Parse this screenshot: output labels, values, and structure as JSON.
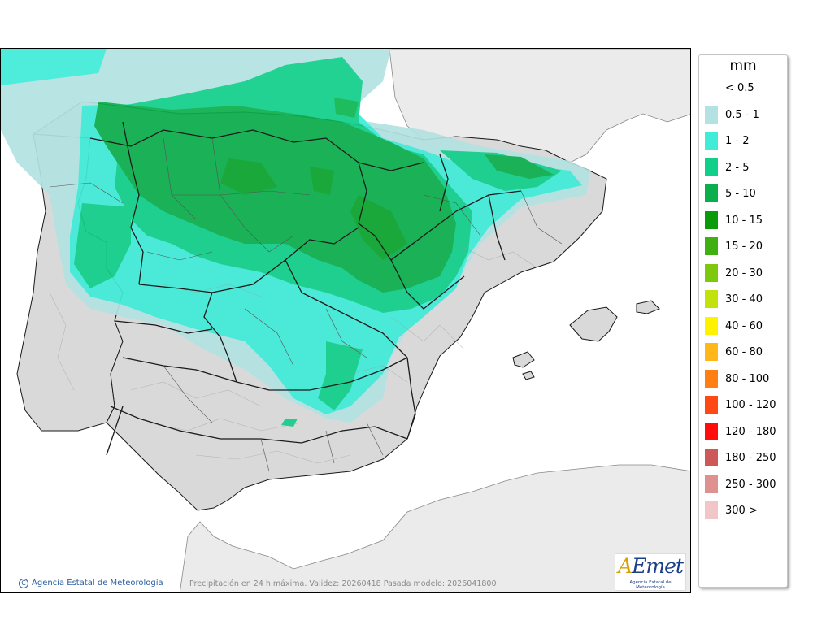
{
  "map": {
    "caption": "Precipitación en 24 h máxima. Validez: 20260418 Pasada modelo: 2026041800",
    "copyright": "Agencia Estatal de Meteorología",
    "copyright_symbol": "C",
    "logo": {
      "mark_a": "A",
      "mark_rest": "Emet",
      "subtitle": "Agencia Estatal de Meteorología"
    },
    "colors": {
      "sea": "#ffffff",
      "land": "#d9d9d9",
      "land_other": "#ebebeb",
      "border": "#1a1a1a"
    }
  },
  "legend": {
    "unit": "mm",
    "items": [
      {
        "label": "< 0.5",
        "color": ""
      },
      {
        "label": "0.5 - 1",
        "color": "#b4e2e2"
      },
      {
        "label": "1 - 2",
        "color": "#40ecd8"
      },
      {
        "label": "2 - 5",
        "color": "#10cf8a"
      },
      {
        "label": "5 - 10",
        "color": "#0bae4c"
      },
      {
        "label": "10 - 15",
        "color": "#0a9a0a"
      },
      {
        "label": "15 - 20",
        "color": "#3fb010"
      },
      {
        "label": "20 - 30",
        "color": "#7ec80e"
      },
      {
        "label": "30 - 40",
        "color": "#c1e20b"
      },
      {
        "label": "40 - 60",
        "color": "#fff200"
      },
      {
        "label": "60 - 80",
        "color": "#ffb71a"
      },
      {
        "label": "80 - 100",
        "color": "#ff7f12"
      },
      {
        "label": "100 - 120",
        "color": "#ff4813"
      },
      {
        "label": "120 - 180",
        "color": "#ff0c0c"
      },
      {
        "label": "180 - 250",
        "color": "#cc5858"
      },
      {
        "label": "250 - 300",
        "color": "#df9191"
      },
      {
        "label": "300 >",
        "color": "#f0c6c6"
      }
    ]
  }
}
